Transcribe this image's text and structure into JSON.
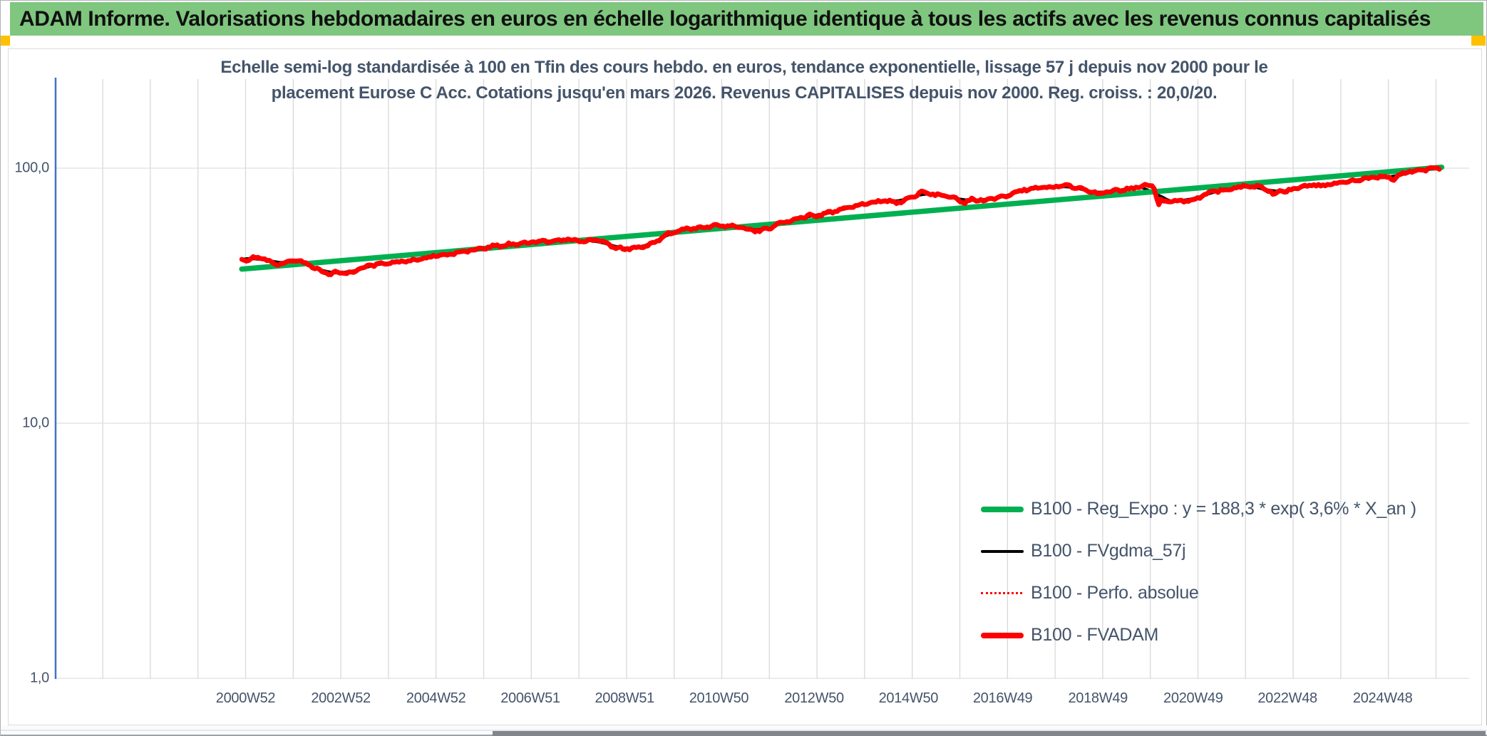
{
  "window": {
    "title": "ADAM Informe. Valorisations hebdomadaires en euros en échelle logarithmique identique à tous les actifs avec les revenus connus capitalisés"
  },
  "chart": {
    "subtitle_line1": "Echelle semi-log standardisée à 100 en Tfin des cours hebdo. en euros, tendance exponentielle, lissage 57 j depuis nov 2000 pour le",
    "subtitle_line2": "placement Eurose C Acc. Cotations jusqu'en mars 2026. Revenus CAPITALISES depuis nov 2000. Reg. croiss. : 20,0/20.",
    "legend": {
      "items": [
        {
          "label": "B100 - Reg_Expo : y = 188,3 * exp( 3,6% *  X_an )",
          "style": "green-thick"
        },
        {
          "label": "B100 - FVgdma_57j",
          "style": "black-thin"
        },
        {
          "label": "B100 - Perfo. absolue",
          "style": "red-dotted"
        },
        {
          "label": "B100 - FVADAM",
          "style": "red-thick"
        }
      ]
    }
  },
  "chart_data": {
    "type": "line",
    "title": "ADAM Informe. Valorisations hebdomadaires en euros en échelle logarithmique identique à tous les actifs avec les revenus connus capitalisés",
    "subtitle": "Echelle semi-log standardisée à 100 en Tfin des cours hebdo. en euros, tendance exponentielle, lissage 57 j depuis nov 2000 pour le placement Eurose C Acc. Cotations jusqu'en mars 2026. Revenus CAPITALISES depuis nov 2000. Reg. croiss. : 20,0/20.",
    "y_axis": {
      "scale": "log",
      "ticks": [
        "100,0",
        "10,0",
        "1,0"
      ],
      "tick_values": [
        100,
        10,
        1
      ],
      "range": [
        1,
        220
      ]
    },
    "x_axis": {
      "tick_labels": [
        "2000W52",
        "2002W52",
        "2004W52",
        "2006W51",
        "2008W51",
        "2010W50",
        "2012W50",
        "2014W50",
        "2016W49",
        "2018W49",
        "2020W49",
        "2022W48",
        "2024W48"
      ],
      "tick_years": [
        2001.0,
        2003.0,
        2005.0,
        2006.98,
        2008.96,
        2010.94,
        2012.94,
        2014.92,
        2016.9,
        2018.9,
        2020.9,
        2022.88,
        2024.88
      ],
      "gridline_years_start": 1998,
      "gridline_years_end": 2026,
      "range_years": [
        1997.0,
        2026.7
      ],
      "grid": true
    },
    "legend_position": "inside-lower-right",
    "series": [
      {
        "name": "B100 - Reg_Expo : y = 188,3 * exp( 3,6% *  X_an )",
        "color": "#00b050",
        "style": "solid",
        "width": 7.5,
        "equation": {
          "a": 188.3,
          "rate_pct": 3.6
        },
        "points": [
          [
            2000.92,
            40.2
          ],
          [
            2026.12,
            100.8
          ]
        ]
      },
      {
        "name": "B100 - FVgdma_57j",
        "color": "#000000",
        "style": "solid",
        "width": 4.2,
        "derived": "smoothed-of-FVADAM"
      },
      {
        "name": "B100 - Perfo. absolue",
        "color": "#ff0000",
        "style": "dotted",
        "width": 2.2,
        "derived": "same-as-FVADAM"
      },
      {
        "name": "B100 - FVADAM",
        "color": "#ff0000",
        "style": "solid",
        "width": 6.8,
        "points": [
          [
            2000.92,
            43.5
          ],
          [
            2001.08,
            43.8
          ],
          [
            2001.2,
            44.6
          ],
          [
            2001.33,
            44.9
          ],
          [
            2001.45,
            43.6
          ],
          [
            2001.6,
            42.5
          ],
          [
            2001.72,
            41.8
          ],
          [
            2001.85,
            42.6
          ],
          [
            2002.0,
            43.2
          ],
          [
            2002.12,
            43.5
          ],
          [
            2002.3,
            42.2
          ],
          [
            2002.45,
            40.6
          ],
          [
            2002.6,
            39.3
          ],
          [
            2002.78,
            38.2
          ],
          [
            2002.88,
            39.6
          ],
          [
            2003.0,
            38.9
          ],
          [
            2003.1,
            38.4
          ],
          [
            2003.25,
            39.2
          ],
          [
            2003.4,
            40.2
          ],
          [
            2003.6,
            41.4
          ],
          [
            2003.8,
            42.0
          ],
          [
            2004.0,
            42.5
          ],
          [
            2004.3,
            43.1
          ],
          [
            2004.6,
            43.9
          ],
          [
            2004.9,
            45.0
          ],
          [
            2005.2,
            45.8
          ],
          [
            2005.5,
            46.7
          ],
          [
            2005.8,
            47.9
          ],
          [
            2006.0,
            48.6
          ],
          [
            2006.3,
            49.8
          ],
          [
            2006.6,
            50.3
          ],
          [
            2006.9,
            50.9
          ],
          [
            2007.2,
            51.5
          ],
          [
            2007.5,
            52.0
          ],
          [
            2007.8,
            52.4
          ],
          [
            2008.0,
            52.0
          ],
          [
            2008.15,
            51.7
          ],
          [
            2008.35,
            52.3
          ],
          [
            2008.55,
            51.2
          ],
          [
            2008.7,
            49.3
          ],
          [
            2008.85,
            48.4
          ],
          [
            2009.05,
            48.2
          ],
          [
            2009.25,
            48.6
          ],
          [
            2009.45,
            49.9
          ],
          [
            2009.65,
            52.0
          ],
          [
            2009.85,
            54.8
          ],
          [
            2010.05,
            56.9
          ],
          [
            2010.3,
            57.8
          ],
          [
            2010.55,
            58.3
          ],
          [
            2010.8,
            59.2
          ],
          [
            2011.05,
            59.6
          ],
          [
            2011.3,
            59.0
          ],
          [
            2011.5,
            57.6
          ],
          [
            2011.68,
            57.0
          ],
          [
            2011.82,
            56.7
          ],
          [
            2011.9,
            58.0
          ],
          [
            2012.05,
            58.6
          ],
          [
            2012.2,
            60.3
          ],
          [
            2012.35,
            61.8
          ],
          [
            2012.5,
            62.8
          ],
          [
            2012.7,
            64.0
          ],
          [
            2012.9,
            65.6
          ],
          [
            2013.0,
            64.8
          ],
          [
            2013.15,
            66.3
          ],
          [
            2013.35,
            67.4
          ],
          [
            2013.55,
            68.8
          ],
          [
            2013.75,
            70.5
          ],
          [
            2013.95,
            72.1
          ],
          [
            2014.15,
            73.2
          ],
          [
            2014.35,
            74.6
          ],
          [
            2014.55,
            73.8
          ],
          [
            2014.7,
            73.3
          ],
          [
            2014.9,
            75.7
          ],
          [
            2015.05,
            77.8
          ],
          [
            2015.2,
            80.5
          ],
          [
            2015.35,
            79.8
          ],
          [
            2015.5,
            78.4
          ],
          [
            2015.65,
            78.9
          ],
          [
            2015.8,
            77.5
          ],
          [
            2015.95,
            75.2
          ],
          [
            2016.1,
            73.5
          ],
          [
            2016.25,
            75.5
          ],
          [
            2016.4,
            75.0
          ],
          [
            2016.55,
            74.8
          ],
          [
            2016.75,
            76.1
          ],
          [
            2016.95,
            77.5
          ],
          [
            2017.15,
            80.0
          ],
          [
            2017.35,
            82.3
          ],
          [
            2017.6,
            83.3
          ],
          [
            2017.85,
            84.2
          ],
          [
            2018.1,
            84.8
          ],
          [
            2018.3,
            85.2
          ],
          [
            2018.5,
            83.3
          ],
          [
            2018.7,
            81.0
          ],
          [
            2018.9,
            79.4
          ],
          [
            2019.1,
            80.7
          ],
          [
            2019.35,
            82.0
          ],
          [
            2019.6,
            83.4
          ],
          [
            2019.85,
            85.0
          ],
          [
            2020.03,
            86.2
          ],
          [
            2020.1,
            82.0
          ],
          [
            2020.16,
            70.3
          ],
          [
            2020.23,
            74.8
          ],
          [
            2020.35,
            74.0
          ],
          [
            2020.5,
            74.6
          ],
          [
            2020.65,
            74.9
          ],
          [
            2020.8,
            74.2
          ],
          [
            2020.95,
            76.0
          ],
          [
            2021.1,
            78.0
          ],
          [
            2021.3,
            80.7
          ],
          [
            2021.5,
            82.0
          ],
          [
            2021.7,
            83.0
          ],
          [
            2021.9,
            84.3
          ],
          [
            2022.05,
            86.0
          ],
          [
            2022.2,
            84.0
          ],
          [
            2022.32,
            85.0
          ],
          [
            2022.45,
            82.0
          ],
          [
            2022.6,
            78.5
          ],
          [
            2022.72,
            81.8
          ],
          [
            2022.85,
            81.0
          ],
          [
            2023.0,
            82.8
          ],
          [
            2023.2,
            84.8
          ],
          [
            2023.4,
            86.0
          ],
          [
            2023.6,
            85.3
          ],
          [
            2023.8,
            86.5
          ],
          [
            2023.98,
            87.8
          ],
          [
            2024.2,
            89.3
          ],
          [
            2024.45,
            90.6
          ],
          [
            2024.7,
            91.9
          ],
          [
            2024.9,
            92.8
          ],
          [
            2025.02,
            92.0
          ],
          [
            2025.12,
            89.8
          ],
          [
            2025.25,
            94.5
          ],
          [
            2025.4,
            96.8
          ],
          [
            2025.6,
            97.8
          ],
          [
            2025.8,
            98.8
          ],
          [
            2025.92,
            100.4
          ],
          [
            2026.0,
            99.2
          ],
          [
            2026.08,
            100.3
          ]
        ]
      }
    ]
  },
  "colors": {
    "header_green": "#7fc67f",
    "accent_orange": "#ffc000",
    "axis_blue": "#4472c4",
    "text_blue_gray": "#44546a",
    "series_green": "#00b050",
    "series_red": "#ff0000",
    "series_black": "#000000",
    "grid_vertical": "#d9d9d9",
    "grid_horizontal": "#dce0e6"
  }
}
